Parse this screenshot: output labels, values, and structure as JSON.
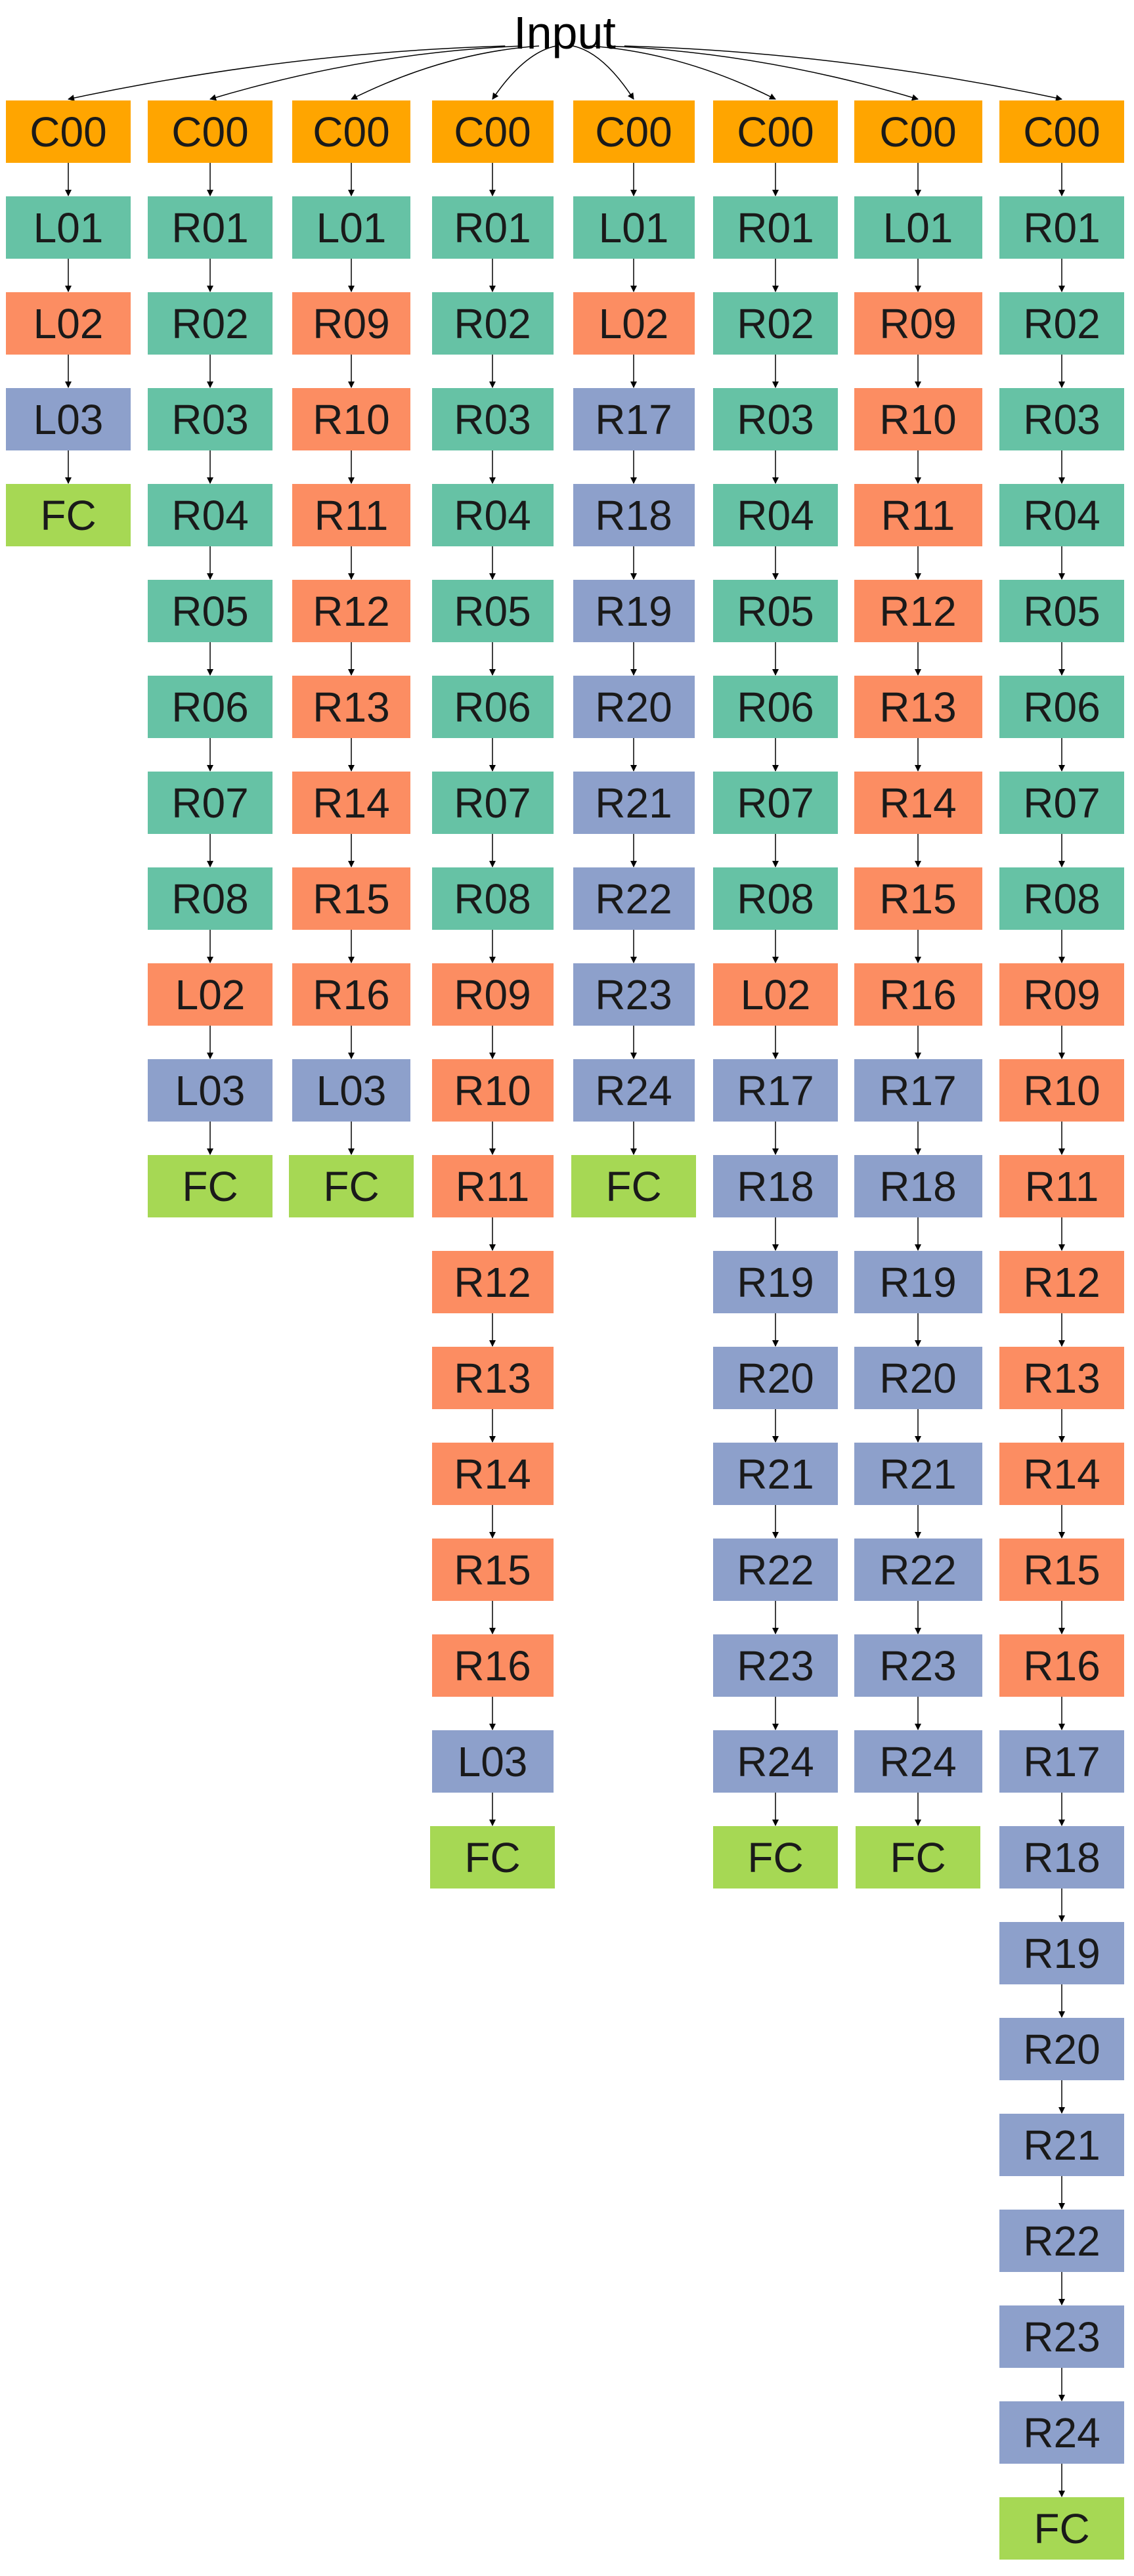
{
  "input": {
    "label": "Input"
  },
  "columns": [
    [
      "C00",
      "L01",
      "L02",
      "L03",
      "FC"
    ],
    [
      "C00",
      "R01",
      "R02",
      "R03",
      "R04",
      "R05",
      "R06",
      "R07",
      "R08",
      "L02",
      "L03",
      "FC"
    ],
    [
      "C00",
      "L01",
      "R09",
      "R10",
      "R11",
      "R12",
      "R13",
      "R14",
      "R15",
      "R16",
      "L03",
      "FC"
    ],
    [
      "C00",
      "R01",
      "R02",
      "R03",
      "R04",
      "R05",
      "R06",
      "R07",
      "R08",
      "R09",
      "R10",
      "R11",
      "R12",
      "R13",
      "R14",
      "R15",
      "R16",
      "L03",
      "FC"
    ],
    [
      "C00",
      "L01",
      "L02",
      "R17",
      "R18",
      "R19",
      "R20",
      "R21",
      "R22",
      "R23",
      "R24",
      "FC"
    ],
    [
      "C00",
      "R01",
      "R02",
      "R03",
      "R04",
      "R05",
      "R06",
      "R07",
      "R08",
      "L02",
      "R17",
      "R18",
      "R19",
      "R20",
      "R21",
      "R22",
      "R23",
      "R24",
      "FC"
    ],
    [
      "C00",
      "L01",
      "R09",
      "R10",
      "R11",
      "R12",
      "R13",
      "R14",
      "R15",
      "R16",
      "R17",
      "R18",
      "R19",
      "R20",
      "R21",
      "R22",
      "R23",
      "R24",
      "FC"
    ],
    [
      "C00",
      "R01",
      "R02",
      "R03",
      "R04",
      "R05",
      "R06",
      "R07",
      "R08",
      "R09",
      "R10",
      "R11",
      "R12",
      "R13",
      "R14",
      "R15",
      "R16",
      "R17",
      "R18",
      "R19",
      "R20",
      "R21",
      "R22",
      "R23",
      "R24",
      "FC"
    ]
  ],
  "colors": {
    "C00": "#ffa500",
    "L01": "#66c2a5",
    "R01": "#66c2a5",
    "R02": "#66c2a5",
    "R03": "#66c2a5",
    "R04": "#66c2a5",
    "R05": "#66c2a5",
    "R06": "#66c2a5",
    "R07": "#66c2a5",
    "R08": "#66c2a5",
    "L02": "#fc8d62",
    "R09": "#fc8d62",
    "R10": "#fc8d62",
    "R11": "#fc8d62",
    "R12": "#fc8d62",
    "R13": "#fc8d62",
    "R14": "#fc8d62",
    "R15": "#fc8d62",
    "R16": "#fc8d62",
    "L03": "#8da0cb",
    "R17": "#8da0cb",
    "R18": "#8da0cb",
    "R19": "#8da0cb",
    "R20": "#8da0cb",
    "R21": "#8da0cb",
    "R22": "#8da0cb",
    "R23": "#8da0cb",
    "R24": "#8da0cb",
    "FC": "#a6d854"
  }
}
